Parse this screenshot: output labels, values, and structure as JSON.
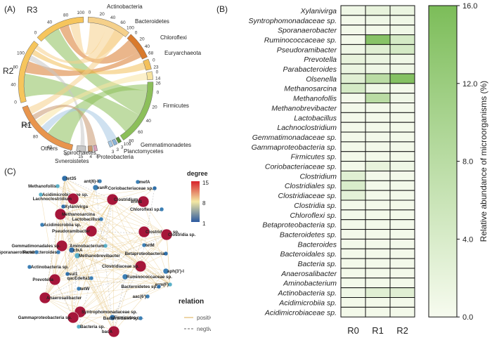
{
  "chart_data": [
    {
      "panel": "(A)",
      "type": "chord",
      "groups_left": [
        "R3",
        "R2",
        "R1"
      ],
      "groups_right": [
        "Actinobacteria",
        "Bacteroidetes",
        "Chloroflexi",
        "Euryarchaeota",
        "Firmicutes",
        "Gemmatimonadetes",
        "Planctomycetes",
        "Proteobacteria",
        "Synergistetes",
        "Spirochaetes",
        "Others"
      ],
      "segment_totals": {
        "Actinobacteria": 100,
        "Bacteroidetes": 68,
        "Chloroflexi": 23,
        "Euryarchaeota": 14,
        "Firmicutes": 109,
        "Gemmatimonadetes": 3,
        "Planctomycetes": 3,
        "Proteobacteria": 3,
        "Synergistetes": 3,
        "Spirochaetes": 4,
        "Others": 15,
        "R3": 100,
        "R2": 100,
        "R1": 100
      },
      "tick_labels": [
        "0",
        "20",
        "40",
        "60",
        "80",
        "100",
        "0",
        "20",
        "40",
        "60",
        "0",
        "20",
        "23",
        "14",
        "0",
        "20",
        "26",
        "0",
        "20",
        "40",
        "60",
        "80",
        "100",
        "109",
        "3",
        "3",
        "3",
        "3",
        "4",
        "3",
        "3",
        "15",
        "0",
        "20",
        "40",
        "60",
        "80",
        "100",
        "0",
        "20",
        "40",
        "60",
        "80",
        "100",
        "0",
        "20",
        "40",
        "60",
        "80",
        "100"
      ],
      "colors": {
        "R3": "#f6c55c",
        "R2": "#f6c55c",
        "R1": "#e8954d",
        "Actinobacteria": "#f5d08a",
        "Bacteroidetes": "#d97a2c",
        "Chloroflexi": "#f3c05a",
        "Euryarchaeota": "#f7e3a0",
        "Firmicutes": "#8cbf5a",
        "Gemmatimonadetes": "#5a8f3a",
        "Planctomycetes": "#8ab3d8",
        "Proteobacteria": "#a7c8e3",
        "Synergistetes": "#d8a0b8",
        "Spirochaetes": "#c89870",
        "Others": "#c7c7c7"
      }
    },
    {
      "panel": "(B)",
      "type": "heatmap",
      "columns": [
        "R0",
        "R1",
        "R2"
      ],
      "rows": [
        "Xylanivirga",
        "Syntrophomonadaceae sp.",
        "Sporanaerobacter",
        "Ruminococcaceae sp.",
        "Pseudoramibacter",
        "Prevotella",
        "Parabacteroides",
        "Olsenella",
        "Methanosarcina",
        "Methanofollis",
        "Methanobrevibacter",
        "Lactobacillus",
        "Lachnoclostridium",
        "Gemmatimonadaceae sp.",
        "Gammaproteobacteria sp.",
        "Firmicutes sp.",
        "Coriobacteriaceae sp.",
        "Clostridium",
        "Clostridiales sp.",
        "Clostridiaceae sp.",
        "Clostridia sp.",
        "Chloroflexi sp.",
        "Betaproteobacteria sp.",
        "Bacteroidetes sp.",
        "Bacteroides",
        "Bacteroidales sp.",
        "Bacteria sp.",
        "Anaerosalibacter",
        "Aminobacterium",
        "Actinobacteria sp.",
        "Acidimicrobiia sp.",
        "Acidimicrobiaceae sp."
      ],
      "values": [
        [
          1.0,
          2.0,
          1.5
        ],
        [
          0.5,
          1.0,
          1.0
        ],
        [
          0.5,
          0.5,
          1.0
        ],
        [
          0.5,
          14.5,
          4.5
        ],
        [
          1.0,
          3.0,
          4.5
        ],
        [
          2.0,
          1.5,
          1.0
        ],
        [
          1.5,
          1.0,
          1.0
        ],
        [
          3.0,
          8.0,
          15.0
        ],
        [
          4.5,
          1.0,
          0.5
        ],
        [
          0.5,
          8.0,
          1.0
        ],
        [
          0.5,
          0.5,
          0.5
        ],
        [
          0.5,
          0.5,
          0.5
        ],
        [
          0.5,
          0.5,
          0.5
        ],
        [
          0.5,
          0.5,
          0.5
        ],
        [
          0.5,
          0.5,
          0.5
        ],
        [
          0.5,
          0.5,
          0.5
        ],
        [
          0.5,
          2.0,
          1.0
        ],
        [
          3.0,
          0.5,
          0.5
        ],
        [
          4.0,
          0.5,
          0.5
        ],
        [
          2.5,
          0.5,
          0.5
        ],
        [
          0.5,
          0.5,
          0.5
        ],
        [
          0.5,
          0.5,
          0.5
        ],
        [
          0.5,
          0.5,
          0.5
        ],
        [
          0.5,
          0.5,
          0.5
        ],
        [
          0.5,
          0.5,
          0.5
        ],
        [
          0.5,
          0.5,
          0.5
        ],
        [
          0.5,
          0.5,
          0.5
        ],
        [
          0.5,
          0.5,
          0.5
        ],
        [
          0.5,
          0.5,
          0.5
        ],
        [
          1.0,
          3.0,
          3.0
        ],
        [
          0.5,
          0.5,
          0.5
        ],
        [
          0.5,
          0.5,
          0.5
        ]
      ],
      "colorbar_label": "Relative abundance of microorganisms (%)",
      "colorbar_ticks": [
        "0.0",
        "4.0",
        "8.0",
        "12.0",
        "16.0"
      ],
      "colorbar_range": [
        0,
        16
      ],
      "color_low": "#f7fbef",
      "color_high": "#7cbd59"
    },
    {
      "panel": "(C)",
      "type": "network",
      "legend_degree_title": "degree",
      "legend_degree_ticks": [
        "15",
        "8",
        "1"
      ],
      "legend_relation_title": "relation",
      "legend_relation_items": [
        "positiv",
        "negtiv"
      ],
      "relation_colors": {
        "positive": "#e8c98a",
        "negative": "#9a9a9a"
      },
      "node_labels": [
        "tet35",
        "ant(6)-I",
        "mefA",
        "Methanofollis",
        "vanR",
        "Coriobacteriaceae sp.",
        "Acidimicrobiaceae sp.",
        "Lachnoclostridium",
        "Clostridium",
        "ermB",
        "Xylanivirga",
        "Chloroflexi sp.",
        "Methanosarcina",
        "Lactobacillus",
        "Acidimicrobiia sp.",
        "Pseudoramibacter",
        "Clostridiales sp.",
        "Gemmatimonadales sp.",
        "Clostridia sp.",
        "Parabacteroides",
        "cfxA",
        "Aminobacterium",
        "tetM",
        "Sporanaerobacter",
        "Methanobrevibacter",
        "Betaproteobacteria",
        "Actinobacteria sp.",
        "Clostridiaceae sp.",
        "aph(3')-I",
        "Prevotella",
        "sul1",
        "qacEdelta1",
        "Ruminococcaceae sp.",
        "erm(F)",
        "tetW",
        "Bacteroidetes sp.",
        "Anaerosalibacter",
        "aac(6')",
        "Syntrophomonadaceae sp.",
        "Gammaproteobacteria sp.",
        "Firmicutes sp.",
        "Bacteroidales sp.",
        "Bacteria sp.",
        "bacA"
      ]
    }
  ],
  "panel_labels": [
    "(A)",
    "(B)",
    "(C)"
  ]
}
